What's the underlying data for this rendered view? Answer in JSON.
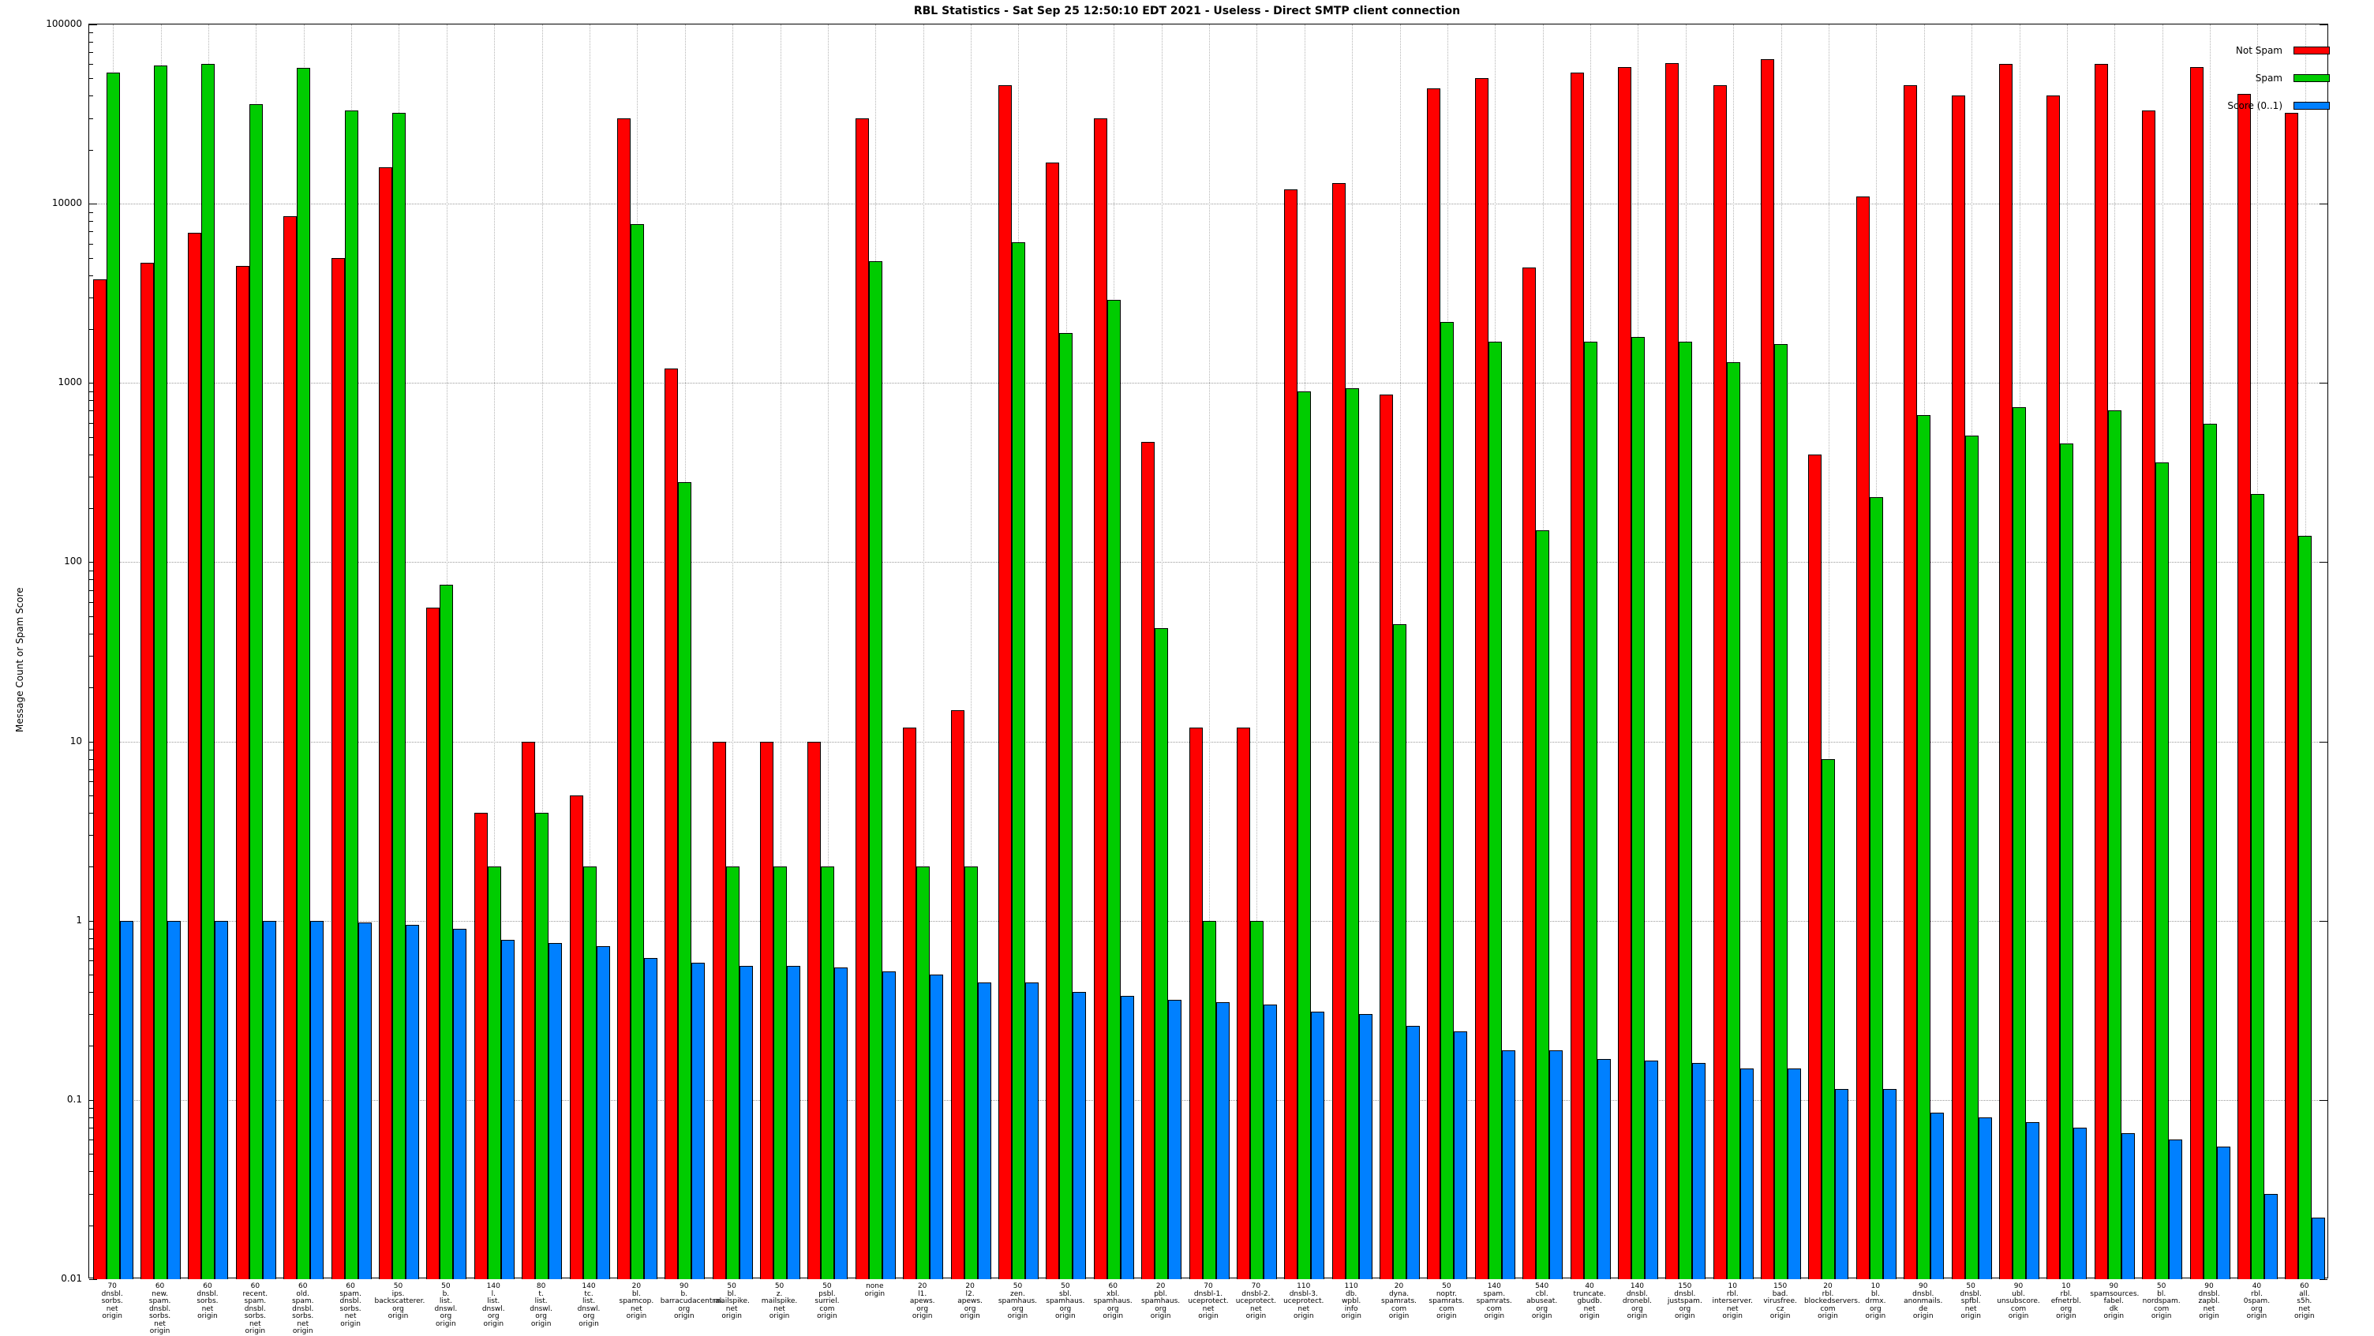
{
  "chart_data": {
    "type": "bar",
    "title": "RBL Statistics - Sat Sep 25 12:50:10 EDT 2021 - Useless - Direct SMTP client connection",
    "ylabel": "Message Count or Spam Score",
    "yscale": "log",
    "ylim": [
      0.01,
      100000
    ],
    "grid": true,
    "legend_position": "top-right",
    "legend": [
      "Not Spam",
      "Spam",
      "Score (0..1)"
    ],
    "colors": {
      "not_spam": "#ff0000",
      "spam": "#00cc00",
      "score": "#0080ff",
      "grid": "#9a9a9a",
      "axis": "#000000",
      "background": "#ffffff"
    },
    "yticks": [
      {
        "value": 100000,
        "label": "100000"
      },
      {
        "value": 10000,
        "label": "10000"
      },
      {
        "value": 1000,
        "label": "1000"
      },
      {
        "value": 100,
        "label": "100"
      },
      {
        "value": 10,
        "label": "10"
      },
      {
        "value": 1,
        "label": "1"
      },
      {
        "value": 0.1,
        "label": "0.1"
      },
      {
        "value": 0.01,
        "label": "0.01"
      }
    ],
    "categories": [
      [
        "70",
        "dnsbl.",
        "sorbs.",
        "net",
        "origin"
      ],
      [
        "60",
        "new.",
        "spam.",
        "dnsbl.",
        "sorbs.",
        "net",
        "origin"
      ],
      [
        "60",
        "dnsbl.",
        "sorbs.",
        "net",
        "origin"
      ],
      [
        "60",
        "recent.",
        "spam.",
        "dnsbl.",
        "sorbs.",
        "net",
        "origin"
      ],
      [
        "60",
        "old.",
        "spam.",
        "dnsbl.",
        "sorbs.",
        "net",
        "origin"
      ],
      [
        "60",
        "spam.",
        "dnsbl.",
        "sorbs.",
        "net",
        "origin"
      ],
      [
        "50",
        "ips.",
        "backscatterer.",
        "org",
        "origin"
      ],
      [
        "50",
        "b.",
        "list.",
        "dnswl.",
        "org",
        "origin"
      ],
      [
        "140",
        "l.",
        "list.",
        "dnswl.",
        "org",
        "origin"
      ],
      [
        "80",
        "t.",
        "list.",
        "dnswl.",
        "org",
        "origin"
      ],
      [
        "140",
        "tc.",
        "list.",
        "dnswl.",
        "org",
        "origin"
      ],
      [
        "20",
        "bl.",
        "spamcop.",
        "net",
        "origin"
      ],
      [
        "90",
        "b.",
        "barracudacentral.",
        "org",
        "origin"
      ],
      [
        "50",
        "bl.",
        "mailspike.",
        "net",
        "origin"
      ],
      [
        "50",
        "z.",
        "mailspike.",
        "net",
        "origin"
      ],
      [
        "50",
        "psbl.",
        "surriel.",
        "com",
        "origin"
      ],
      [
        "none",
        "origin"
      ],
      [
        "20",
        "l1.",
        "apews.",
        "org",
        "origin"
      ],
      [
        "20",
        "l2.",
        "apews.",
        "org",
        "origin"
      ],
      [
        "50",
        "zen.",
        "spamhaus.",
        "org",
        "origin"
      ],
      [
        "50",
        "sbl.",
        "spamhaus.",
        "org",
        "origin"
      ],
      [
        "60",
        "xbl.",
        "spamhaus.",
        "org",
        "origin"
      ],
      [
        "20",
        "pbl.",
        "spamhaus.",
        "org",
        "origin"
      ],
      [
        "70",
        "dnsbl-1.",
        "uceprotect.",
        "net",
        "origin"
      ],
      [
        "70",
        "dnsbl-2.",
        "uceprotect.",
        "net",
        "origin"
      ],
      [
        "110",
        "dnsbl-3.",
        "uceprotect.",
        "net",
        "origin"
      ],
      [
        "110",
        "db.",
        "wpbl.",
        "info",
        "origin"
      ],
      [
        "20",
        "dyna.",
        "spamrats.",
        "com",
        "origin"
      ],
      [
        "50",
        "noptr.",
        "spamrats.",
        "com",
        "origin"
      ],
      [
        "140",
        "spam.",
        "spamrats.",
        "com",
        "origin"
      ],
      [
        "540",
        "cbl.",
        "abuseat.",
        "org",
        "origin"
      ],
      [
        "40",
        "truncate.",
        "gbudb.",
        "net",
        "origin"
      ],
      [
        "140",
        "dnsbl.",
        "dronebl.",
        "org",
        "origin"
      ],
      [
        "150",
        "dnsbl.",
        "justspam.",
        "org",
        "origin"
      ],
      [
        "10",
        "rbl.",
        "interserver.",
        "net",
        "origin"
      ],
      [
        "150",
        "bad.",
        "virusfree.",
        "cz",
        "origin"
      ],
      [
        "20",
        "rbl.",
        "blockedservers.",
        "com",
        "origin"
      ],
      [
        "10",
        "bl.",
        "drmx.",
        "org",
        "origin"
      ],
      [
        "90",
        "dnsbl.",
        "anonmails.",
        "de",
        "origin"
      ],
      [
        "50",
        "dnsbl.",
        "spfbl.",
        "net",
        "origin"
      ],
      [
        "90",
        "ubl.",
        "unsubscore.",
        "com",
        "origin"
      ],
      [
        "10",
        "rbl.",
        "efnetrbl.",
        "org",
        "origin"
      ],
      [
        "90",
        "spamsources.",
        "fabel.",
        "dk",
        "origin"
      ],
      [
        "50",
        "bl.",
        "nordspam.",
        "com",
        "origin"
      ],
      [
        "90",
        "dnsbl.",
        "zapbl.",
        "net",
        "origin"
      ],
      [
        "40",
        "rbl.",
        "0spam.",
        "org",
        "origin"
      ],
      [
        "60",
        "all.",
        "s5h.",
        "net",
        "origin"
      ]
    ],
    "series": [
      {
        "name": "Not Spam",
        "color": "#ff0000",
        "values": [
          3800,
          4700,
          6900,
          4500,
          8500,
          5000,
          16000,
          56,
          4,
          10,
          5,
          30000,
          1200,
          10,
          10,
          10,
          30000,
          12,
          15,
          46000,
          17000,
          30000,
          470,
          12,
          12,
          12000,
          13000,
          860,
          44000,
          50000,
          4400,
          54000,
          58000,
          61000,
          46000,
          64000,
          400,
          11000,
          46000,
          40000,
          60000,
          40000,
          60000,
          33000,
          58000,
          41000,
          32000
        ]
      },
      {
        "name": "Spam",
        "color": "#00cc00",
        "values": [
          54000,
          59000,
          60000,
          36000,
          57000,
          33000,
          32000,
          75,
          2,
          4,
          2,
          7700,
          280,
          2,
          2,
          2,
          4800,
          2,
          2,
          6100,
          1900,
          2900,
          43,
          1,
          1,
          900,
          930,
          45,
          2200,
          1700,
          150,
          1700,
          1800,
          1700,
          1300,
          1650,
          8,
          230,
          660,
          510,
          730,
          460,
          700,
          360,
          590,
          240,
          140
        ]
      },
      {
        "name": "Score (0..1)",
        "color": "#0080ff",
        "values": [
          1.0,
          1.0,
          1.0,
          1.0,
          1.0,
          0.98,
          0.95,
          0.9,
          0.78,
          0.75,
          0.72,
          0.62,
          0.58,
          0.56,
          0.56,
          0.55,
          0.52,
          0.5,
          0.45,
          0.45,
          0.4,
          0.38,
          0.36,
          0.35,
          0.34,
          0.31,
          0.3,
          0.26,
          0.24,
          0.19,
          0.19,
          0.17,
          0.165,
          0.16,
          0.15,
          0.15,
          0.115,
          0.115,
          0.085,
          0.08,
          0.075,
          0.07,
          0.065,
          0.06,
          0.055,
          0.03,
          0.022
        ]
      }
    ]
  }
}
